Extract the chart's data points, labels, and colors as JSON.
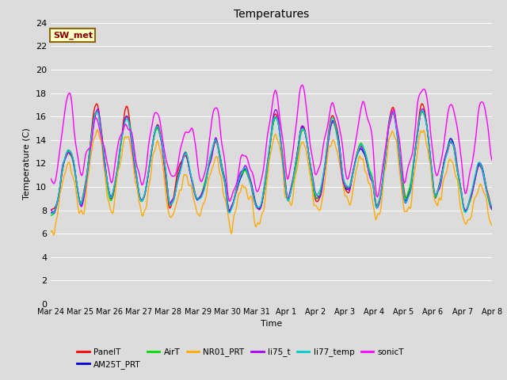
{
  "title": "Temperatures",
  "xlabel": "Time",
  "ylabel": "Temperature (C)",
  "ylim": [
    0,
    24
  ],
  "yticks": [
    0,
    2,
    4,
    6,
    8,
    10,
    12,
    14,
    16,
    18,
    20,
    22,
    24
  ],
  "background_color": "#dcdcdc",
  "plot_background": "#dcdcdc",
  "grid_color": "#ffffff",
  "annotation_text": "SW_met",
  "annotation_bg": "#ffffc8",
  "annotation_border": "#8B6914",
  "annotation_text_color": "#8B0000",
  "series_order": [
    "PanelT",
    "AM25T_PRT",
    "AirT",
    "NR01_PRT",
    "li75_t",
    "li77_temp",
    "sonicT"
  ],
  "series": {
    "PanelT": {
      "color": "#ff0000",
      "lw": 1.0
    },
    "AM25T_PRT": {
      "color": "#0000dd",
      "lw": 1.0
    },
    "AirT": {
      "color": "#00dd00",
      "lw": 1.0
    },
    "NR01_PRT": {
      "color": "#ffaa00",
      "lw": 1.0
    },
    "li75_t": {
      "color": "#aa00ff",
      "lw": 1.0
    },
    "li77_temp": {
      "color": "#00cccc",
      "lw": 1.0
    },
    "sonicT": {
      "color": "#ff00ff",
      "lw": 1.0
    }
  },
  "xtick_labels": [
    "Mar 24",
    "Mar 25",
    "Mar 26",
    "Mar 27",
    "Mar 28",
    "Mar 29",
    "Mar 30",
    "Mar 31",
    "Apr 1",
    "Apr 2",
    "Apr 3",
    "Apr 4",
    "Apr 5",
    "Apr 6",
    "Apr 7",
    "Apr 8"
  ],
  "n_points": 480,
  "legend_ncol": 6,
  "figsize": [
    6.4,
    4.8
  ],
  "dpi": 100
}
